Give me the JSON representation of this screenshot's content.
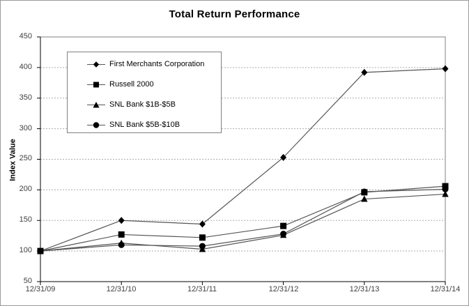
{
  "chart_data": {
    "type": "line",
    "title": "Total Return Performance",
    "ylabel": "Index Value",
    "xlabel": "",
    "x": [
      "12/31/09",
      "12/31/10",
      "12/31/11",
      "12/31/12",
      "12/31/13",
      "12/31/14"
    ],
    "ylim": [
      50,
      450
    ],
    "ytick_step": 50,
    "yticks_desc": [
      "450",
      "400",
      "350",
      "300",
      "250",
      "200",
      "150",
      "100",
      "50"
    ],
    "grid": "horizontal-dotted",
    "legend_position": "upper-left-inside",
    "series": [
      {
        "name": "First Merchants Corporation",
        "marker": "diamond",
        "values": [
          100,
          150,
          144,
          253,
          392,
          398
        ]
      },
      {
        "name": "Russell 2000",
        "marker": "square",
        "values": [
          100,
          127,
          122,
          141,
          196,
          206
        ]
      },
      {
        "name": "SNL Bank $1B-$5B",
        "marker": "triangle",
        "values": [
          100,
          113,
          103,
          126,
          185,
          193
        ]
      },
      {
        "name": "SNL Bank $5B-$10B",
        "marker": "circle",
        "values": [
          100,
          110,
          108,
          128,
          197,
          201
        ]
      }
    ],
    "colors": {
      "line": "#555555",
      "marker": "#000000",
      "grid": "#ababab",
      "frame": "#808080",
      "axis": "#000000"
    }
  }
}
